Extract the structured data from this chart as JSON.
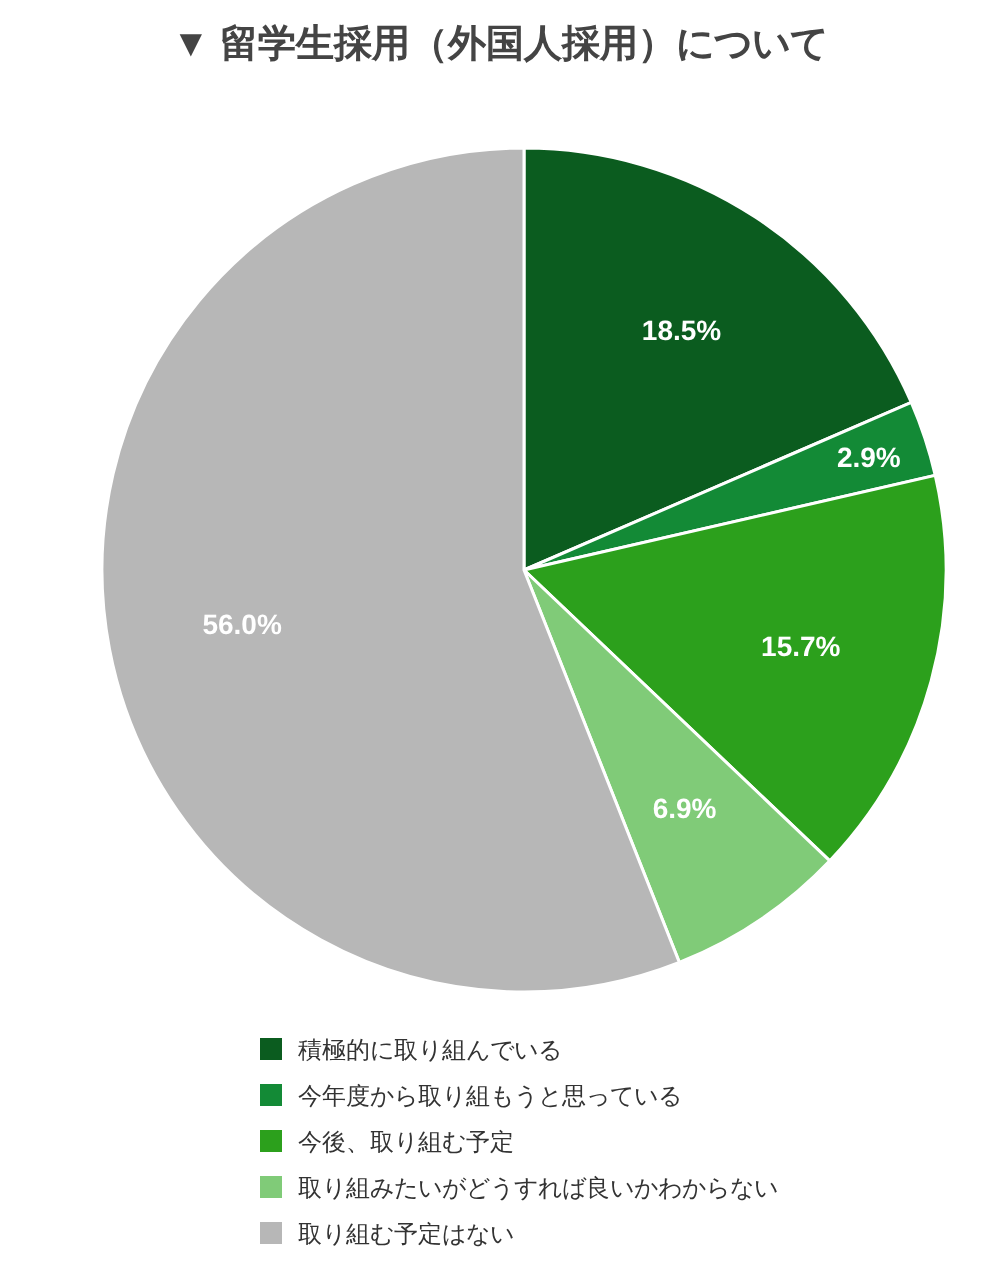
{
  "chart_data": {
    "type": "pie",
    "title": "▼ 留学生採用（外国人採用）について",
    "categories": [
      "積極的に取り組んでいる",
      "今年度から取り組もうと思っている",
      "今後、取り組む予定",
      "取り組みたいがどうすれば良いかわからない",
      "取り組む予定はない"
    ],
    "values": [
      18.5,
      2.9,
      15.7,
      6.9,
      56.0
    ],
    "value_labels": [
      "18.5%",
      "2.9%",
      "15.7%",
      "6.9%",
      "56.0%"
    ],
    "colors": [
      "#0b5c1f",
      "#138a36",
      "#2ca01c",
      "#80cb78",
      "#b7b7b7"
    ],
    "legend": "bottom"
  }
}
